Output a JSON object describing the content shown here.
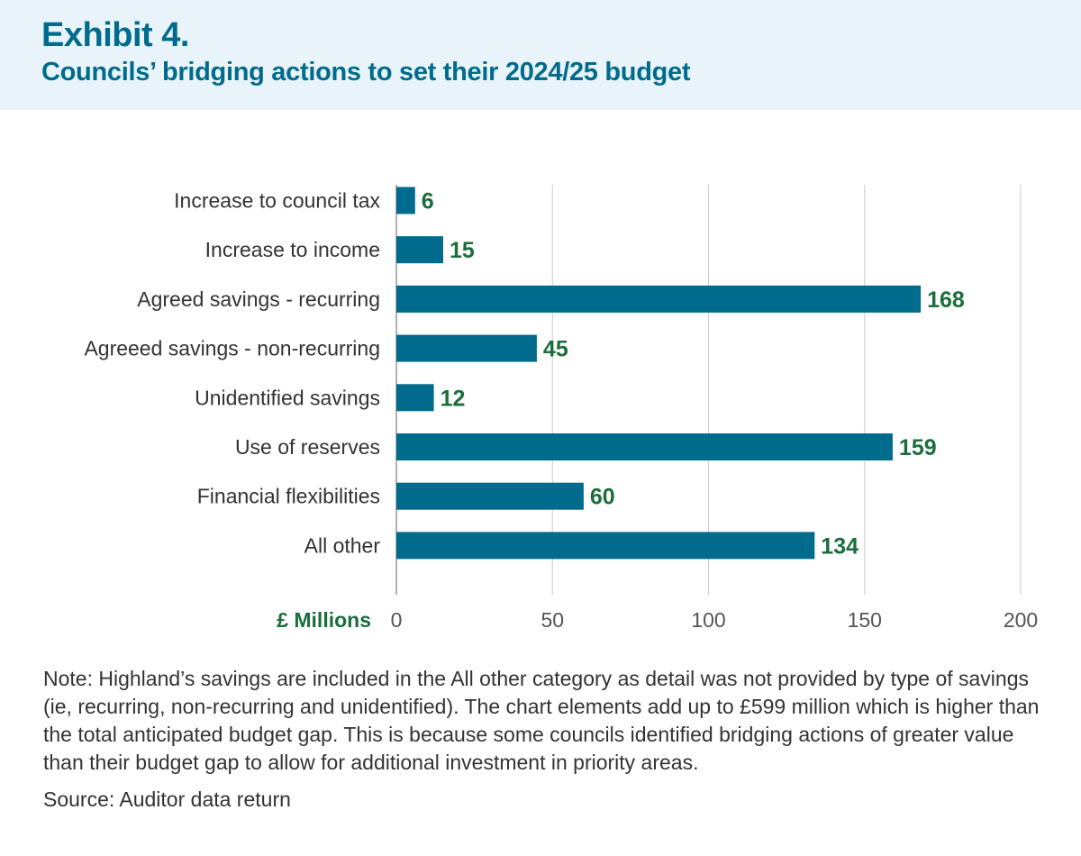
{
  "header": {
    "exhibit": "Exhibit 4.",
    "title": "Councils’ bridging actions to set their 2024/25 budget"
  },
  "chart_data": {
    "type": "bar",
    "orientation": "horizontal",
    "categories": [
      "Increase to council tax",
      "Increase to income",
      "Agreed savings - recurring",
      "Agreeed savings - non-recurring",
      "Unidentified savings",
      "Use of reserves",
      "Financial flexibilities",
      "All other"
    ],
    "values": [
      6,
      15,
      168,
      45,
      12,
      159,
      60,
      134
    ],
    "xlabel": "£ Millions",
    "xlim": [
      0,
      200
    ],
    "xticks": [
      0,
      50,
      100,
      150,
      200
    ],
    "grid": true,
    "data_labels": true,
    "colors": {
      "bar": "#006b8c",
      "label": "#1a6e3c",
      "grid": "#cccccc"
    }
  },
  "footer": {
    "note": "Note: Highland’s savings are included in the All other category as detail was not provided by type of savings (ie, recurring, non-recurring and unidentified). The chart elements add up to £599 million which is higher than the total anticipated budget gap. This is because some councils identified bridging actions of greater value than their budget gap to allow for additional investment in priority areas.",
    "source": "Source: Auditor data return"
  }
}
